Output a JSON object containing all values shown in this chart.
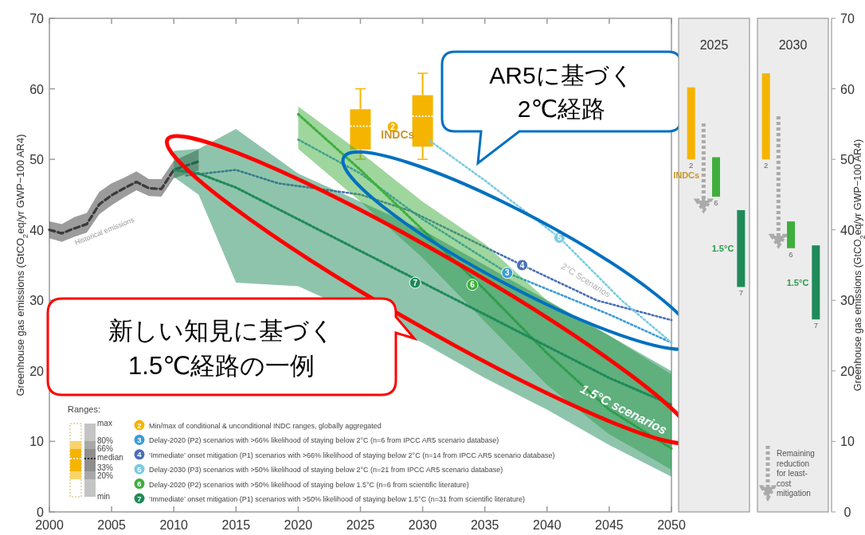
{
  "chart_data": [
    {
      "type": "line",
      "xlim": [
        2000,
        2050
      ],
      "xticks": [
        2000,
        2005,
        2010,
        2015,
        2020,
        2025,
        2030,
        2035,
        2040,
        2045,
        2050
      ],
      "ylim": [
        0,
        70
      ],
      "yticks": [
        0,
        10,
        20,
        30,
        40,
        50,
        60,
        70
      ],
      "ylabel": "Greenhouse gas emissions (GtCO$_{2}$eq/yr GWP−100 AR4)",
      "legend": "bottom left",
      "series": [
        {
          "name": "Historical emissions",
          "type": "line",
          "color": "#3a3a3a",
          "line_style": "dashed",
          "x": [
            2000,
            2001,
            2002,
            2003,
            2004,
            2005,
            2006,
            2007,
            2008,
            2009,
            2010,
            2011,
            2012
          ],
          "values": [
            40,
            39.5,
            40.2,
            40.8,
            43.6,
            44.9,
            45.9,
            46.8,
            45.9,
            45.8,
            48.5,
            49.1,
            49.7
          ],
          "lower": [
            38.8,
            38.3,
            39,
            39.6,
            42.2,
            43.5,
            44.6,
            45.6,
            44.8,
            44.7,
            47.3,
            47.9,
            48.4
          ],
          "upper": [
            41.2,
            40.8,
            41.8,
            42.4,
            45.4,
            46.6,
            47.4,
            48.3,
            47.2,
            47.2,
            49.8,
            50.6,
            51.4
          ]
        },
        {
          "name": "Min/max of conditional & unconditional INDC ranges, globally aggregated",
          "type": "box",
          "color": "#f5b400",
          "x": [
            2025,
            2030
          ],
          "boxes": [
            {
              "low": 50,
              "q1": 51.4,
              "median": 54.7,
              "q3": 57.1,
              "high": 60
            },
            {
              "low": 50,
              "q1": 51.8,
              "median": 56.1,
              "q3": 59.1,
              "high": 62.2
            }
          ]
        },
        {
          "name": "Delay-2020 (P2) scenarios with >66% likelihood of staying below 2°C (n=6 from IPCC AR5 scenario database)",
          "type": "line",
          "color": "#3b9bd6",
          "line_style": "dotted",
          "x": [
            2020,
            2025,
            2030,
            2036.8,
            2045,
            2050
          ],
          "values": [
            52.8,
            48,
            41.5,
            33.9,
            28,
            24
          ]
        },
        {
          "name": "‘Immediate’ onset mitigation (P1) scenarios with >66% likelihood of staying below 2°C (n=14 from IPCC AR5 scenario database)",
          "type": "line",
          "color": "#4a6fb8",
          "line_style": "dotted",
          "x": [
            2011,
            2015,
            2018.4,
            2025,
            2029,
            2038,
            2044,
            2050
          ],
          "values": [
            47.7,
            48.5,
            46.6,
            45,
            42.7,
            35,
            30,
            27.2
          ]
        },
        {
          "name": "Delay-2030 (P3) scenarios with >50% likelihood of staying below 2°C (n=21 from IPCC AR5 scenario database)",
          "type": "line",
          "color": "#7ccbe3",
          "line_style": "dotted",
          "x": [
            2030.6,
            2035,
            2041,
            2046,
            2050
          ],
          "values": [
            52.6,
            47,
            38.9,
            30,
            24
          ]
        },
        {
          "name": "Delay-2020 (P2) scenarios with >50% likelihood of staying below 1.5°C (n=6 from scientific literature)",
          "type": "line",
          "color": "#3fae3d",
          "line_style": "dotted",
          "x": [
            2020,
            2025,
            2030,
            2035,
            2040,
            2045,
            2050
          ],
          "values": [
            56.4,
            48.5,
            40,
            31.5,
            22.5,
            14.5,
            9
          ],
          "lower": [
            51.5,
            44,
            36,
            27,
            18,
            11,
            6
          ],
          "upper": [
            57.5,
            51,
            44,
            38,
            30,
            25,
            19.5
          ]
        },
        {
          "name": "‘Immediate’ onset mitigation (P1) scenarios with >50% likelihood of staying below 1.5°C (n=31 from scientific literature)",
          "type": "line",
          "color": "#1f8a5a",
          "line_style": "dotted",
          "x": [
            2010,
            2012,
            2015,
            2020,
            2030,
            2035,
            2040,
            2045,
            2050
          ],
          "values": [
            48.5,
            48,
            46,
            41.5,
            32.5,
            28,
            23.5,
            19,
            15.2
          ],
          "lower": [
            47.5,
            45,
            32.5,
            32,
            24,
            19,
            14.5,
            9.5,
            5
          ],
          "upper": [
            51.2,
            51.5,
            54.3,
            48,
            40,
            35,
            30,
            25,
            20
          ]
        }
      ],
      "annotations": [
        "2",
        "3",
        "4",
        "5",
        "6",
        "7",
        {
          "text": "2",
          "x": 2027.6,
          "y": 54.6
        },
        {
          "text": "3",
          "x": 2036.8,
          "y": 33.9
        },
        {
          "text": "4",
          "x": 2038,
          "y": 35
        },
        {
          "text": "5",
          "x": 2041,
          "y": 38.9
        },
        {
          "text": "6",
          "x": 2034,
          "y": 32.2
        },
        {
          "text": "7",
          "x": 2029.4,
          "y": 32.5
        },
        "Ranges:",
        "max",
        "80%",
        "66%",
        "median",
        "33%",
        "20%",
        "min",
        "INDCs",
        "2°C Scenarios",
        {
          "text": "1.5°C scenarios",
          "x": 2046,
          "y": 14
        },
        "新しい知見に基づく\n1.5℃経路の一例",
        "AR5に基づく\n2℃経路"
      ]
    },
    {
      "type": "bar",
      "categories": [
        null,
        null,
        null,
        null,
        null,
        null
      ],
      "colors": [
        "#f5b400",
        "#3fae3d",
        "#1f8a5a",
        "#f5b400",
        "#3fae3d",
        "#1f8a5a"
      ],
      "ylim": [
        0,
        70
      ],
      "yticks": [
        0,
        10,
        20,
        30,
        40,
        50,
        60,
        70
      ],
      "tick_labels": "y",
      "ylabel": "Greenhouse gas emissions (GtCO$_{2}$eq/yr GWP−100 AR4)",
      "base": [
        50,
        44.7,
        31.9,
        50,
        37.4,
        27.3
      ],
      "values": [
        10.2,
        5.6,
        10.9,
        12.2,
        3.8,
        10.5
      ],
      "annotations": [
        "2025",
        "2030",
        "2",
        "6",
        "7",
        "2",
        "6",
        "7",
        "INDCs",
        "1.5°C",
        "1.5°C",
        "Remaining\nreduction\nfor least-\ncost\nmitigation"
      ]
    }
  ]
}
